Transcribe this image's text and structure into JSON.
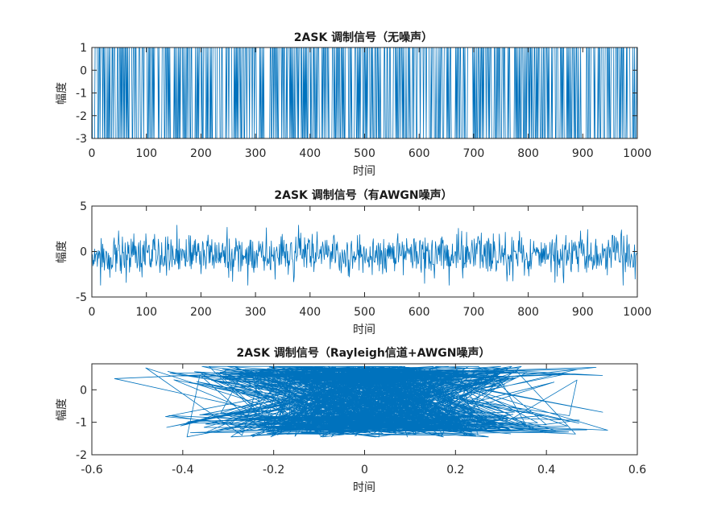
{
  "window": {
    "background": "#ffffff"
  },
  "colors": {
    "line": "#0072BD",
    "axes": "#262626"
  },
  "chart_data": [
    {
      "type": "line",
      "title": "2ASK 调制信号（无噪声）",
      "xlabel": "时间",
      "ylabel": "幅度",
      "xlim": [
        0,
        1000
      ],
      "ylim": [
        -3,
        1
      ],
      "xticks": [
        0,
        100,
        200,
        300,
        400,
        500,
        600,
        700,
        800,
        900,
        1000
      ],
      "yticks": [
        -3,
        -2,
        -1,
        0,
        1
      ],
      "grid": false,
      "series": [
        {
          "description": "square-wave 2ASK signal alternating between levels 1 and -3 over t = 0..1000",
          "levels": [
            1,
            -3
          ],
          "n_points": 1000
        }
      ]
    },
    {
      "type": "line",
      "title": "2ASK 调制信号（有AWGN噪声）",
      "xlabel": "时间",
      "ylabel": "幅度",
      "xlim": [
        0,
        1000
      ],
      "ylim": [
        -5,
        5
      ],
      "xticks": [
        0,
        100,
        200,
        300,
        400,
        500,
        600,
        700,
        800,
        900,
        1000
      ],
      "yticks": [
        -5,
        0,
        5
      ],
      "grid": false,
      "series": [
        {
          "description": "noisy signal mostly between about -3.5 and 2.5",
          "range": [
            -3.5,
            2.9
          ],
          "n_points": 1000
        }
      ]
    },
    {
      "type": "line",
      "title": "2ASK 调制信号（Rayleigh信道+AWGN噪声）",
      "xlabel": "时间",
      "ylabel": "幅度",
      "xlim": [
        -0.6,
        0.6
      ],
      "ylim": [
        -2,
        0.8
      ],
      "xticks": [
        -0.6,
        -0.4,
        -0.2,
        0,
        0.2,
        0.4,
        0.6
      ],
      "yticks": [
        -2,
        -1,
        0
      ],
      "grid": false,
      "series": [
        {
          "description": "tangled complex-plane trace, x in about [-0.55, 0.55], y in about [-1.45, 0.72]",
          "xrange": [
            -0.55,
            0.55
          ],
          "yrange": [
            -1.45,
            0.72
          ],
          "n_points": 1000
        }
      ]
    }
  ]
}
